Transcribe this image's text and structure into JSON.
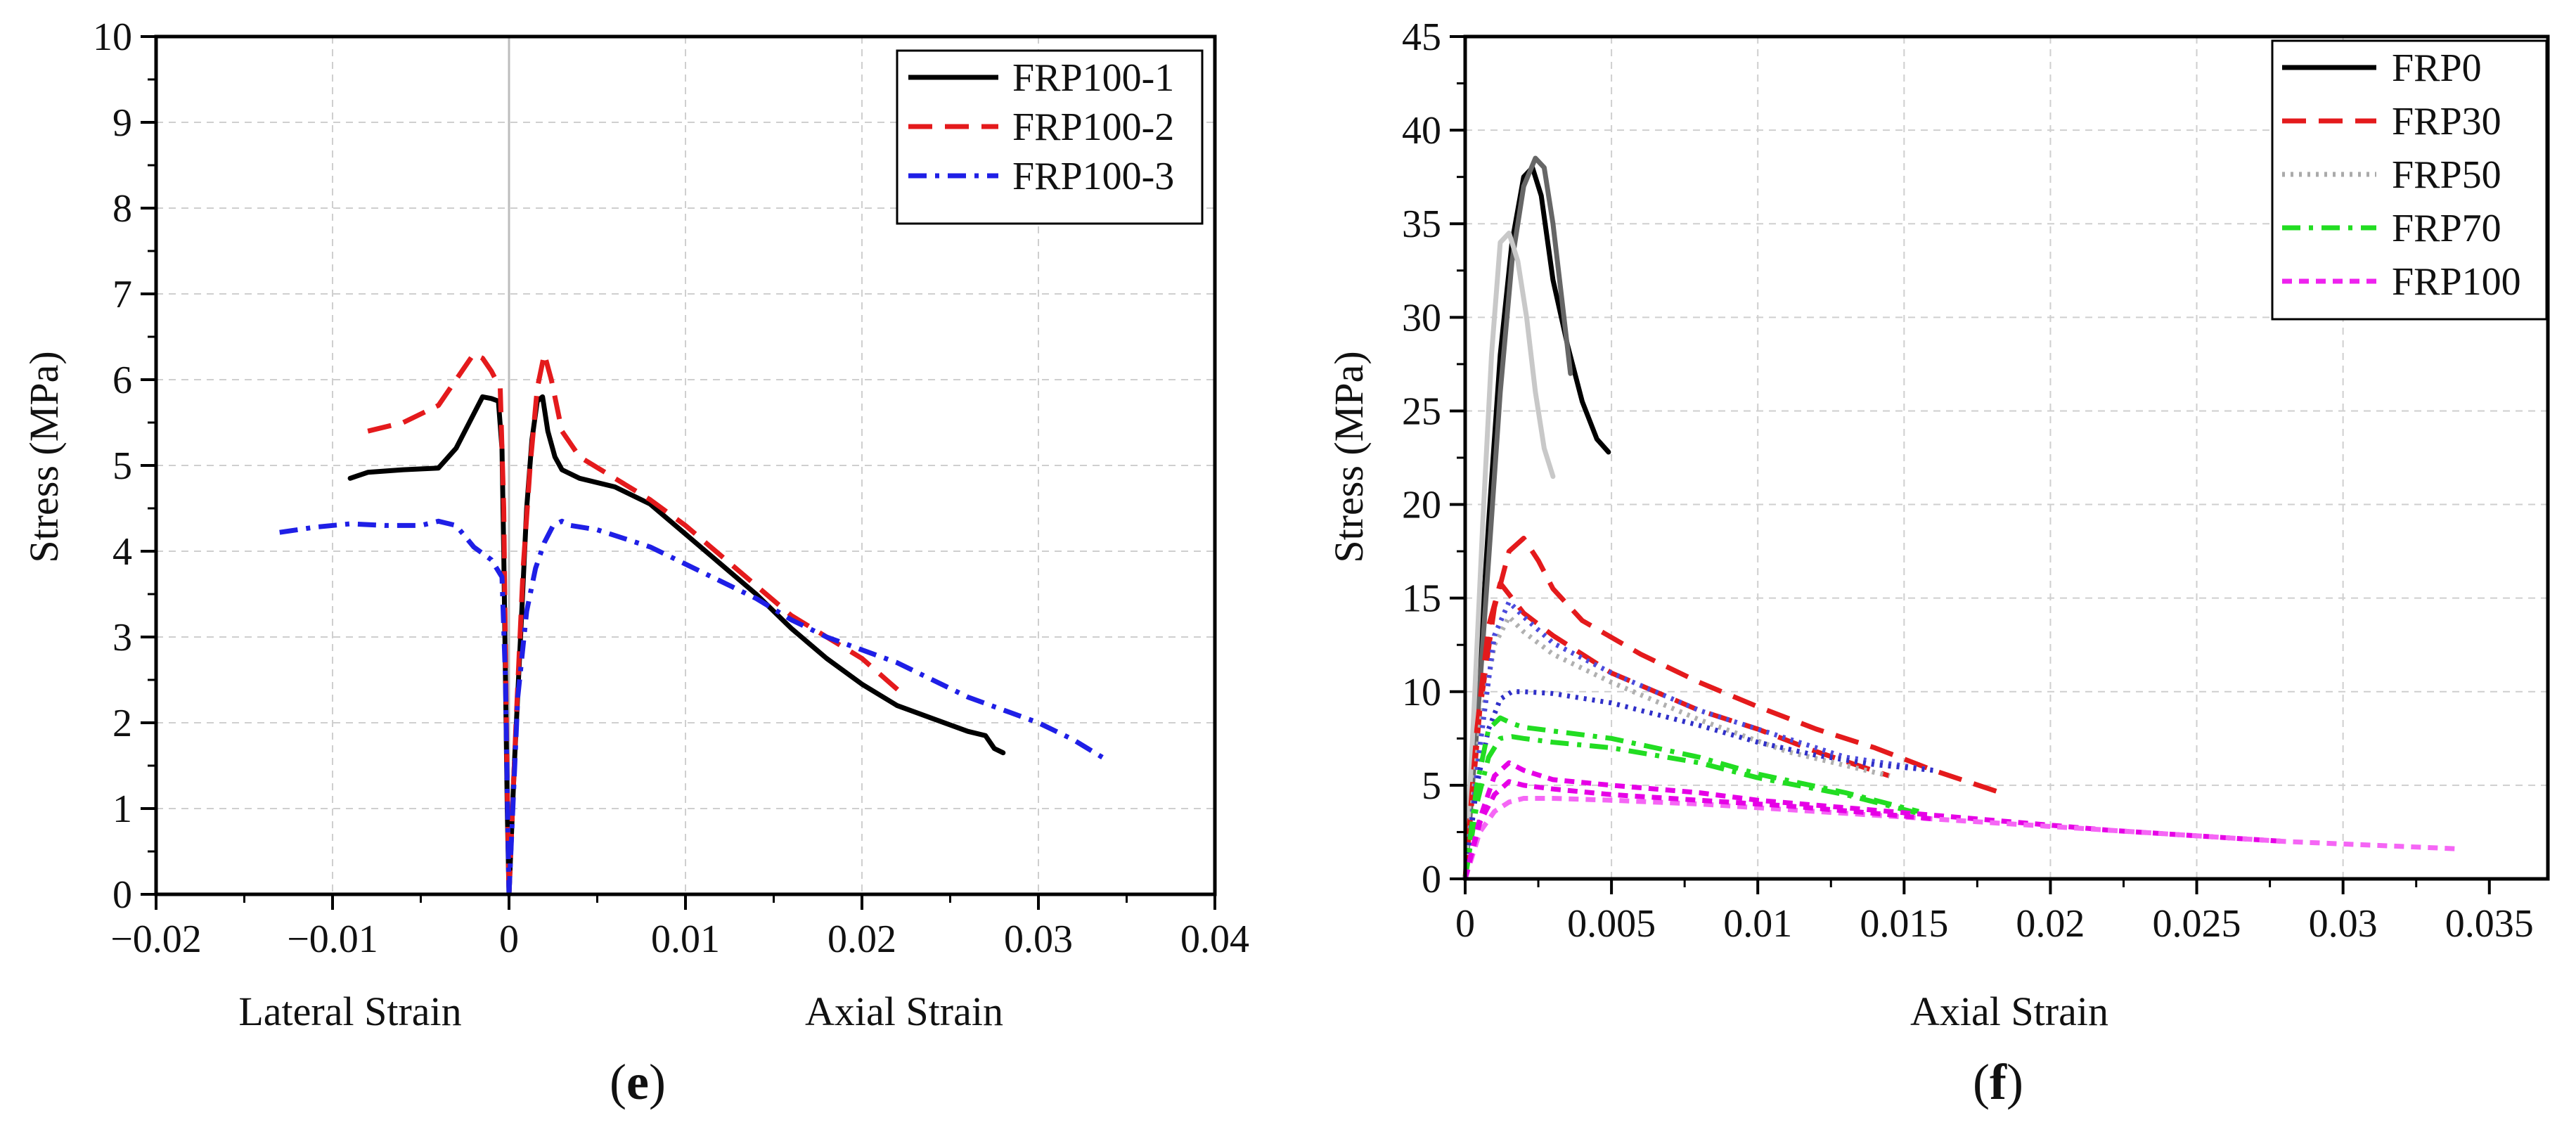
{
  "chart_data": [
    {
      "type": "line",
      "panel_label": "e",
      "xlabel_left": "Lateral Strain",
      "xlabel_right": "Axial Strain",
      "ylabel": "Stress (MPa)",
      "xlim": [
        -0.02,
        0.04
      ],
      "ylim": [
        0,
        10
      ],
      "x_ticks": [
        -0.02,
        -0.01,
        0,
        0.01,
        0.02,
        0.03,
        0.04
      ],
      "x_tick_labels": [
        "−0.02",
        "−0.01",
        "0",
        "0.01",
        "0.02",
        "0.03",
        "0.04"
      ],
      "y_ticks": [
        0,
        1,
        2,
        3,
        4,
        5,
        6,
        7,
        8,
        9,
        10
      ],
      "y_tick_labels": [
        "0",
        "1",
        "2",
        "3",
        "4",
        "5",
        "6",
        "7",
        "8",
        "9",
        "10"
      ],
      "grid": true,
      "legend_position": "top-right",
      "series": [
        {
          "name": "FRP100-1",
          "color": "#000000",
          "dash": "solid",
          "lateral": {
            "x": [
              -0.009,
              -0.008,
              -0.006,
              -0.004,
              -0.003,
              -0.002,
              -0.0015,
              -0.001,
              -0.0006,
              -0.0004,
              -0.0003,
              -0.0002,
              -0.0001,
              0
            ],
            "y": [
              4.85,
              4.92,
              4.95,
              4.97,
              5.2,
              5.6,
              5.8,
              5.78,
              5.75,
              5.2,
              4.0,
              2.5,
              1.0,
              0
            ]
          },
          "axial": {
            "x": [
              0,
              0.0003,
              0.0007,
              0.001,
              0.0013,
              0.0016,
              0.0019,
              0.0022,
              0.0026,
              0.003,
              0.004,
              0.006,
              0.008,
              0.01,
              0.012,
              0.014,
              0.016,
              0.018,
              0.02,
              0.022,
              0.024,
              0.026,
              0.027,
              0.0275,
              0.028
            ],
            "y": [
              0,
              1.5,
              3.2,
              4.5,
              5.3,
              5.75,
              5.8,
              5.4,
              5.1,
              4.95,
              4.85,
              4.75,
              4.55,
              4.2,
              3.85,
              3.5,
              3.1,
              2.75,
              2.45,
              2.2,
              2.05,
              1.9,
              1.85,
              1.7,
              1.65
            ]
          }
        },
        {
          "name": "FRP100-2",
          "color": "#e41a1c",
          "dash": "dashed",
          "lateral": {
            "x": [
              -0.008,
              -0.006,
              -0.004,
              -0.003,
              -0.002,
              -0.0015,
              -0.001,
              -0.0005,
              -0.0003,
              -0.0002,
              -0.0001,
              0
            ],
            "y": [
              5.4,
              5.5,
              5.7,
              6.0,
              6.3,
              6.25,
              6.1,
              5.9,
              4.5,
              2.8,
              1.2,
              0
            ]
          },
          "axial": {
            "x": [
              0,
              0.0004,
              0.0008,
              0.0012,
              0.0016,
              0.002,
              0.0024,
              0.003,
              0.004,
              0.006,
              0.008,
              0.01,
              0.012,
              0.014,
              0.016,
              0.018,
              0.02,
              0.0225
            ],
            "y": [
              0,
              2.0,
              3.8,
              5.0,
              5.9,
              6.3,
              6.0,
              5.4,
              5.1,
              4.85,
              4.6,
              4.3,
              3.95,
              3.6,
              3.25,
              3.0,
              2.75,
              2.3
            ]
          }
        },
        {
          "name": "FRP100-3",
          "color": "#1f1fe6",
          "dash": "dashdot",
          "lateral": {
            "x": [
              -0.013,
              -0.011,
              -0.009,
              -0.007,
              -0.005,
              -0.004,
              -0.003,
              -0.002,
              -0.001,
              -0.0004,
              -0.0002,
              -0.0001,
              0
            ],
            "y": [
              4.22,
              4.28,
              4.32,
              4.3,
              4.3,
              4.35,
              4.3,
              4.05,
              3.9,
              3.7,
              2.5,
              1.2,
              0
            ]
          },
          "axial": {
            "x": [
              0,
              0.0005,
              0.001,
              0.0015,
              0.002,
              0.0025,
              0.003,
              0.0035,
              0.005,
              0.008,
              0.01,
              0.012,
              0.014,
              0.016,
              0.018,
              0.02,
              0.022,
              0.024,
              0.026,
              0.028,
              0.03,
              0.032,
              0.034
            ],
            "y": [
              0,
              2.3,
              3.3,
              3.8,
              4.1,
              4.3,
              4.35,
              4.3,
              4.25,
              4.05,
              3.85,
              3.65,
              3.45,
              3.2,
              3.0,
              2.85,
              2.7,
              2.5,
              2.3,
              2.15,
              2.0,
              1.8,
              1.55
            ]
          }
        }
      ]
    },
    {
      "type": "line",
      "panel_label": "f",
      "xlabel": "Axial Strain",
      "ylabel": "Stress (MPa)",
      "xlim": [
        0,
        0.037
      ],
      "ylim": [
        0,
        45
      ],
      "x_ticks": [
        0,
        0.005,
        0.01,
        0.015,
        0.02,
        0.025,
        0.03,
        0.035
      ],
      "x_tick_labels": [
        "0",
        "0.005",
        "0.01",
        "0.015",
        "0.02",
        "0.025",
        "0.03",
        "0.035"
      ],
      "y_ticks": [
        0,
        5,
        10,
        15,
        20,
        25,
        30,
        35,
        40,
        45
      ],
      "y_tick_labels": [
        "0",
        "5",
        "10",
        "15",
        "20",
        "25",
        "30",
        "35",
        "40",
        "45"
      ],
      "grid": true,
      "legend_position": "top-right",
      "series": [
        {
          "name": "FRP0",
          "color": "#000000",
          "dash": "solid",
          "curves": [
            {
              "color": "#000000",
              "x": [
                0,
                0.0004,
                0.0008,
                0.0012,
                0.0016,
                0.002,
                0.0023,
                0.0026,
                0.003,
                0.0035,
                0.004,
                0.0045,
                0.0049
              ],
              "y": [
                0,
                9,
                19,
                28,
                34,
                37.5,
                38.0,
                36.5,
                32,
                28.5,
                25.5,
                23.5,
                22.8
              ]
            },
            {
              "color": "#666666",
              "x": [
                0,
                0.0004,
                0.0008,
                0.0012,
                0.0016,
                0.002,
                0.0024,
                0.0027,
                0.003,
                0.0033,
                0.0036
              ],
              "y": [
                0,
                8,
                17,
                26,
                33,
                37,
                38.5,
                38.0,
                35,
                31,
                27
              ]
            },
            {
              "color": "#c8c8c8",
              "x": [
                0,
                0.0003,
                0.0006,
                0.0009,
                0.0012,
                0.0015,
                0.0018,
                0.0021,
                0.0024,
                0.0027,
                0.003
              ],
              "y": [
                0,
                9,
                19,
                28,
                34,
                34.5,
                33,
                30,
                26,
                23,
                21.5
              ]
            }
          ]
        },
        {
          "name": "FRP30",
          "color": "#e41a1c",
          "dash": "dashed",
          "curves": [
            {
              "x": [
                0,
                0.0005,
                0.001,
                0.0015,
                0.002,
                0.0025,
                0.003,
                0.004,
                0.006,
                0.008,
                0.01,
                0.012,
                0.014,
                0.016,
                0.0185
              ],
              "y": [
                0,
                9,
                14.5,
                17.5,
                18.2,
                17,
                15.5,
                13.8,
                12.0,
                10.5,
                9.2,
                8.0,
                7.0,
                5.8,
                4.5
              ]
            },
            {
              "x": [
                0,
                0.0004,
                0.0008,
                0.0012,
                0.0016,
                0.002,
                0.003,
                0.005,
                0.008,
                0.01,
                0.012,
                0.0145
              ],
              "y": [
                0,
                8,
                13.5,
                15.8,
                15.0,
                14.2,
                13.0,
                11.0,
                9.0,
                8.0,
                6.8,
                5.5
              ]
            }
          ]
        },
        {
          "name": "FRP50",
          "color": "#aaaaaa",
          "dash": "dotted",
          "curves": [
            {
              "color": "#b0b0b0",
              "x": [
                0,
                0.0005,
                0.001,
                0.0015,
                0.002,
                0.003,
                0.005,
                0.008,
                0.011,
                0.0145
              ],
              "y": [
                0,
                8,
                12.5,
                14,
                13.2,
                12.0,
                10.5,
                8.5,
                6.8,
                5.5
              ]
            },
            {
              "color": "#4b4bdc",
              "x": [
                0,
                0.0005,
                0.001,
                0.0015,
                0.002,
                0.003,
                0.005,
                0.008,
                0.011,
                0.013,
                0.016
              ],
              "y": [
                0,
                7,
                13,
                14.8,
                14.0,
                12.6,
                11.0,
                9.0,
                7.5,
                6.5,
                5.8
              ]
            },
            {
              "color": "#3030c8",
              "x": [
                0,
                0.0004,
                0.0008,
                0.0012,
                0.0016,
                0.002,
                0.003,
                0.005,
                0.008,
                0.01,
                0.012,
                0.014,
                0.016
              ],
              "y": [
                0,
                5,
                8,
                9.6,
                10.0,
                10.0,
                9.9,
                9.4,
                8.2,
                7.3,
                6.6,
                6.1,
                5.8
              ]
            }
          ]
        },
        {
          "name": "FRP70",
          "color": "#22dd22",
          "dash": "dashdot",
          "curves": [
            {
              "x": [
                0,
                0.0004,
                0.0008,
                0.0012,
                0.0016,
                0.002,
                0.003,
                0.005,
                0.008,
                0.01,
                0.013,
                0.0155
              ],
              "y": [
                0,
                5,
                8,
                8.6,
                8.3,
                8.1,
                7.9,
                7.5,
                6.5,
                5.6,
                4.6,
                3.6
              ]
            },
            {
              "x": [
                0,
                0.0004,
                0.0008,
                0.0012,
                0.0016,
                0.002,
                0.003,
                0.005,
                0.008,
                0.01,
                0.013,
                0.0155
              ],
              "y": [
                0,
                4,
                6.5,
                7.5,
                7.6,
                7.5,
                7.3,
                7.0,
                6.2,
                5.4,
                4.5,
                3.5
              ]
            }
          ]
        },
        {
          "name": "FRP100",
          "color": "#ee22ee",
          "dash": "dotted-dashed",
          "curves": [
            {
              "color": "#e600e6",
              "x": [
                0,
                0.0005,
                0.001,
                0.0015,
                0.002,
                0.003,
                0.005,
                0.008,
                0.01,
                0.013,
                0.016,
                0.019,
                0.022,
                0.025,
                0.028
              ],
              "y": [
                0,
                3.2,
                5.5,
                6.2,
                5.8,
                5.3,
                5.0,
                4.6,
                4.2,
                3.8,
                3.4,
                3.0,
                2.6,
                2.3,
                2.0
              ]
            },
            {
              "color": "#f566f5",
              "x": [
                0,
                0.0005,
                0.001,
                0.0015,
                0.002,
                0.003,
                0.005,
                0.008,
                0.01,
                0.013,
                0.016,
                0.019,
                0.022,
                0.025,
                0.028,
                0.031,
                0.034
              ],
              "y": [
                0,
                2.5,
                3.6,
                4.1,
                4.3,
                4.3,
                4.2,
                4.0,
                3.8,
                3.5,
                3.2,
                2.9,
                2.6,
                2.3,
                2.0,
                1.8,
                1.6
              ]
            },
            {
              "color": "#e600e6",
              "x": [
                0,
                0.0005,
                0.001,
                0.0015,
                0.002,
                0.003,
                0.005,
                0.008,
                0.011,
                0.014,
                0.016
              ],
              "y": [
                0,
                3.0,
                4.5,
                5.2,
                5.0,
                4.8,
                4.5,
                4.2,
                3.9,
                3.5,
                3.2
              ]
            }
          ]
        }
      ]
    }
  ]
}
